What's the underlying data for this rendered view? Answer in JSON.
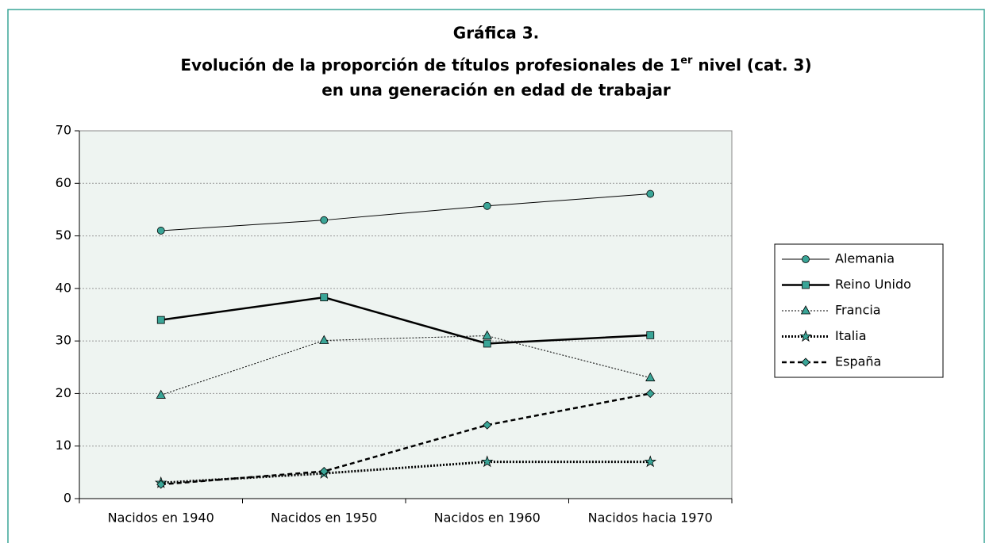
{
  "chart_data": {
    "type": "line",
    "title": "Gráfica 3.",
    "subtitle": [
      "Evolución de la proporción de títulos profesionales de 1",
      "er",
      " nivel (cat. 3)"
    ],
    "subtitle2": "en una generación en edad de trabajar",
    "categories": [
      "Nacidos en 1940",
      "Nacidos en 1950",
      "Nacidos en 1960",
      "Nacidos hacia 1970"
    ],
    "series": [
      {
        "name": "Alemania",
        "color": "#000000",
        "marker": "circle",
        "values": [
          51,
          53,
          55.7,
          58
        ]
      },
      {
        "name": "Reino Unido",
        "color": "#000000",
        "marker": "square",
        "values": [
          34,
          38.3,
          29.5,
          31.1
        ]
      },
      {
        "name": "Francia",
        "color": "#000000",
        "marker": "triangle",
        "values": [
          19.7,
          30.1,
          31,
          23
        ]
      },
      {
        "name": "Italia",
        "color": "#000000",
        "marker": "star",
        "values": [
          3,
          4.8,
          7,
          7
        ]
      },
      {
        "name": "España",
        "color": "#000000",
        "marker": "diamond",
        "values": [
          2.7,
          5.2,
          14,
          20
        ]
      }
    ],
    "marker_color": "#3aa597",
    "ylim": [
      0,
      70
    ],
    "yticks": [
      0,
      10,
      20,
      30,
      40,
      50,
      60,
      70
    ],
    "grid": true,
    "legend": "right"
  }
}
